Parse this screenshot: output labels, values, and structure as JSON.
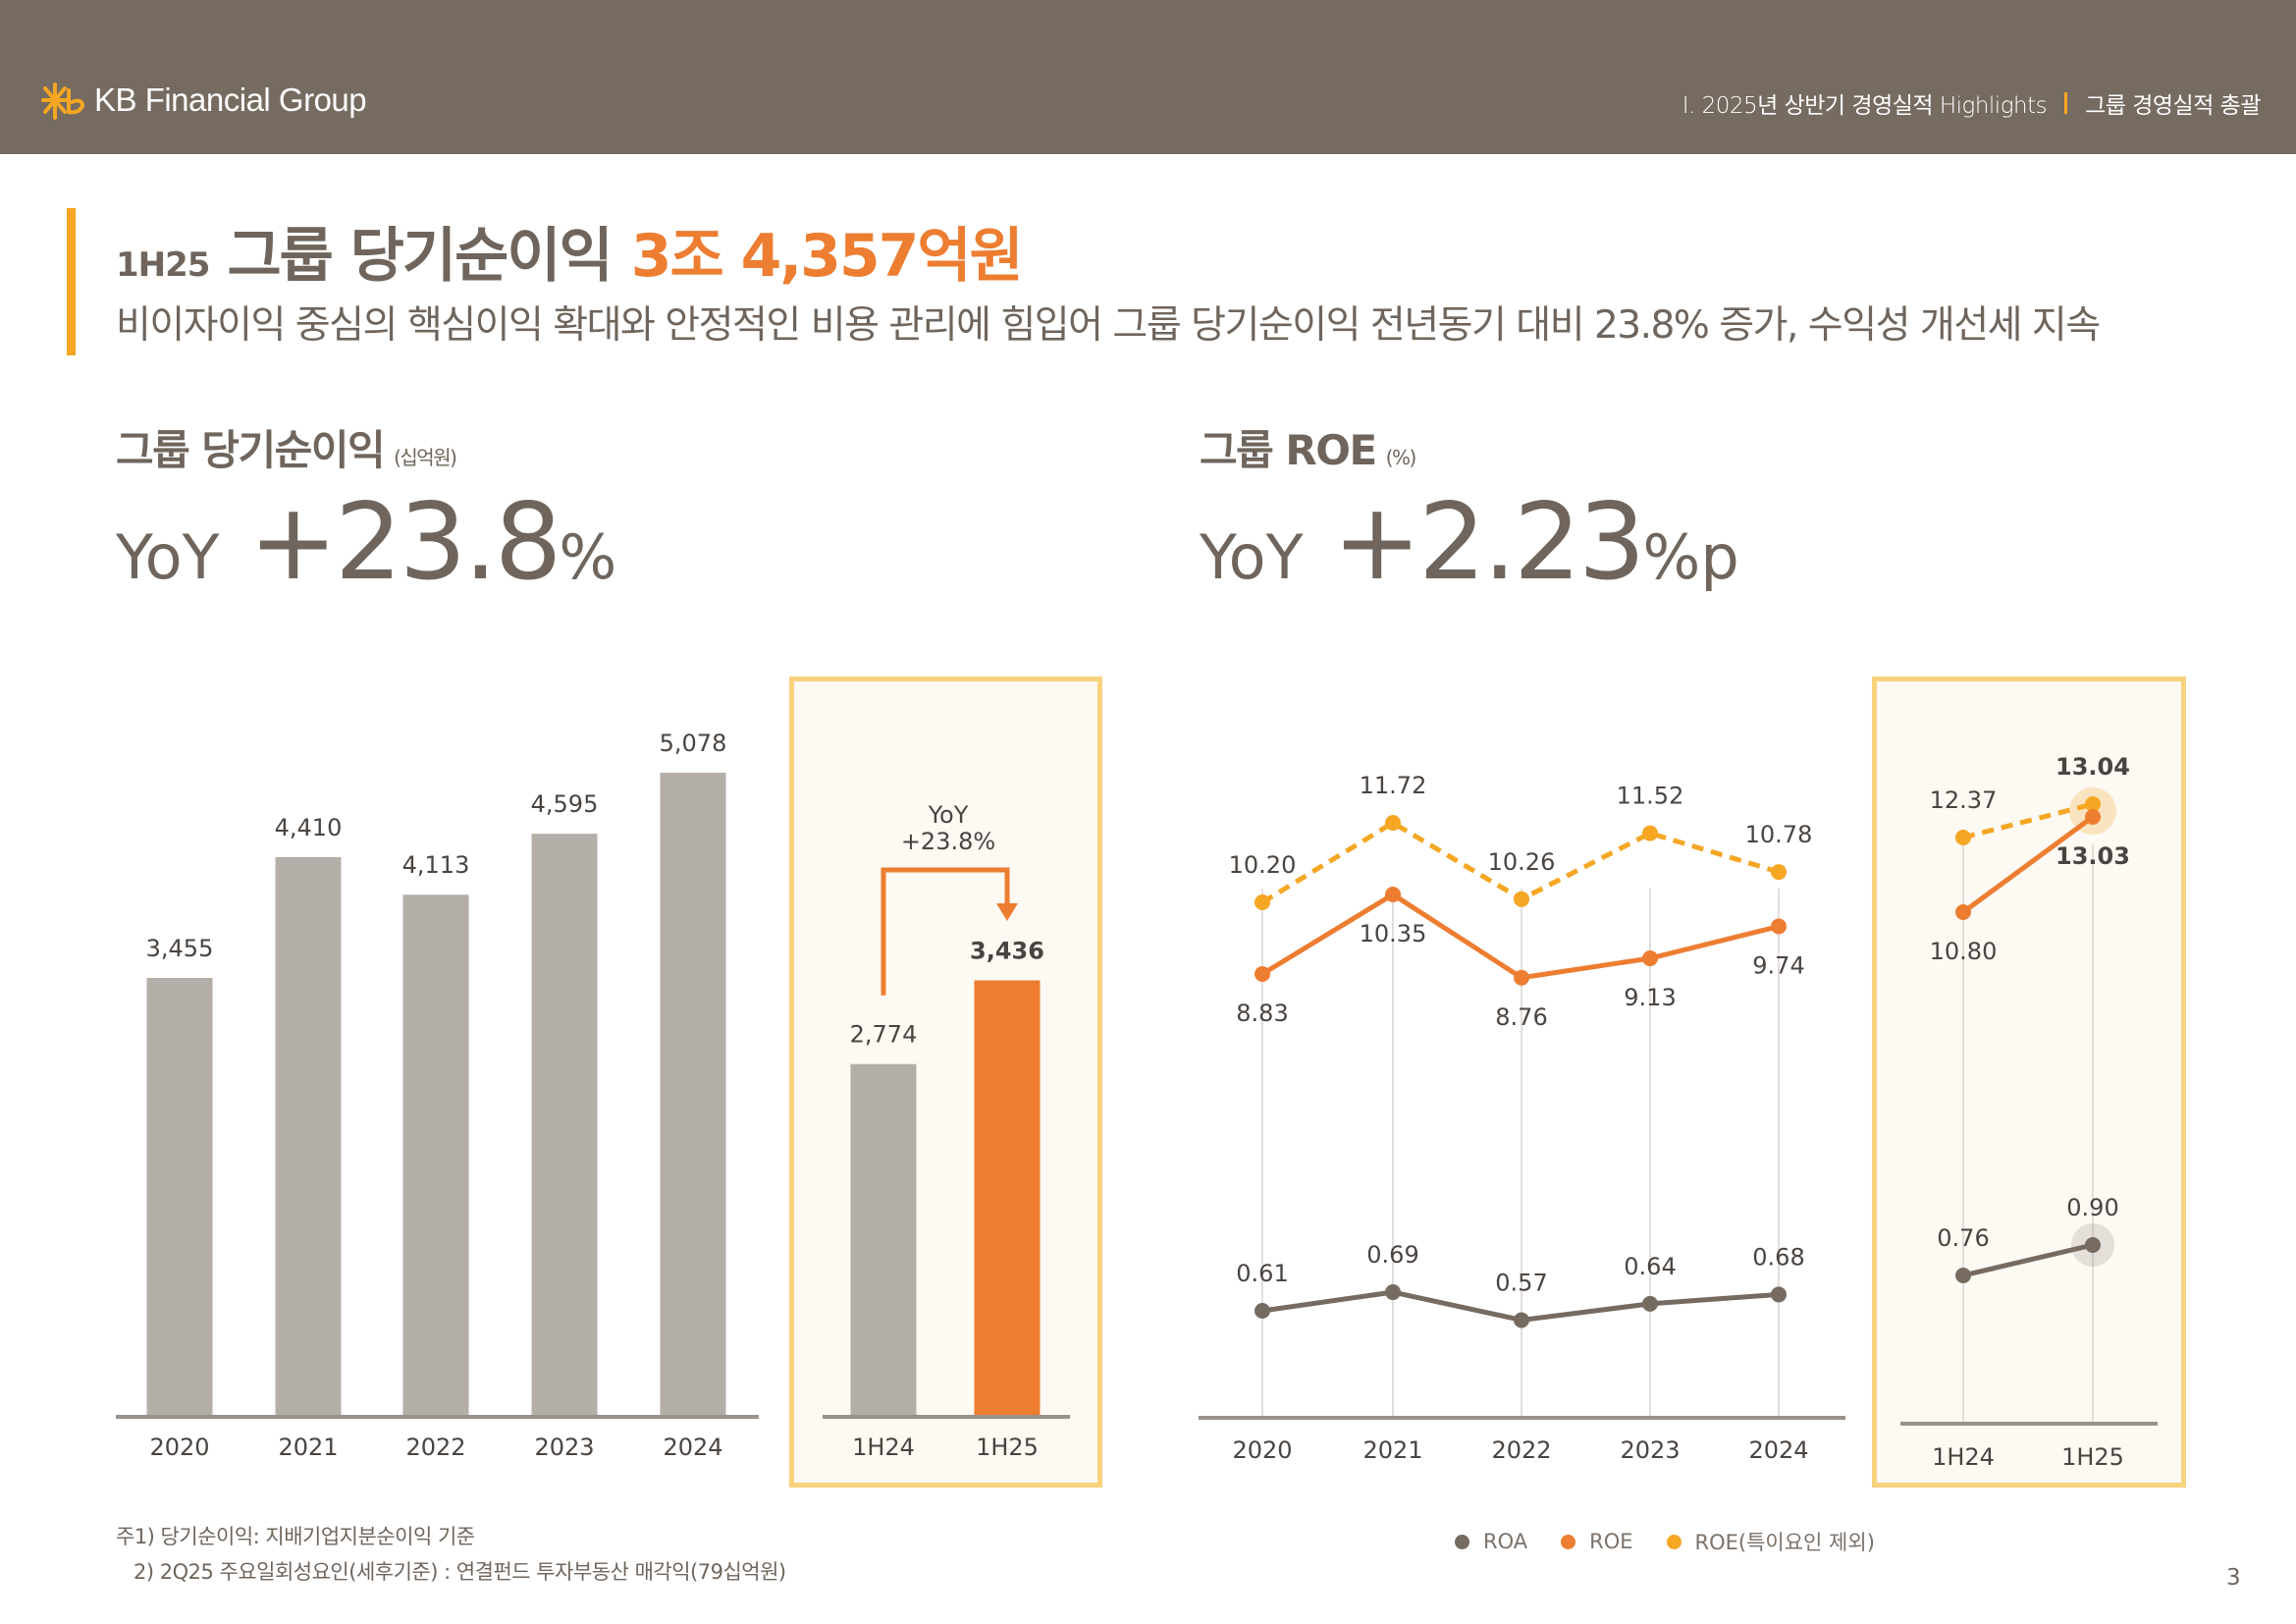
{
  "header": {
    "brand": "KB Financial Group",
    "breadcrumb_section": "Ⅰ. 2025년 상반기 경영실적 Highlights",
    "breadcrumb_page": "그룹 경영실적 총괄"
  },
  "title": {
    "prefix": "1H25",
    "main": "그룹 당기순이익",
    "accent": "3조 4,357억원",
    "subtitle": "비이자이익 중심의 핵심이익 확대와 안정적인 비용 관리에 힘입어 그룹 당기순이익 전년동기 대비 23.8% 증가, 수익성 개선세 지속"
  },
  "left_section": {
    "title": "그룹 당기순이익",
    "unit": "(십억원)",
    "yoy_label": "YoY",
    "yoy_value": "+23.8",
    "yoy_suffix": "%"
  },
  "right_section": {
    "title": "그룹 ROE",
    "unit": "(%)",
    "yoy_label": "YoY",
    "yoy_value": "+2.23",
    "yoy_suffix": "%p"
  },
  "colors": {
    "brown": "#766b60",
    "gray_bar": "#b3aea8",
    "orange": "#ed7d31",
    "yellow": "#f5a623",
    "highlight_border": "#f8d27c",
    "highlight_bg": "#fdf9f3"
  },
  "chart_data": [
    {
      "type": "bar",
      "title": "그룹 당기순이익",
      "ylabel": "십억원",
      "categories": [
        "2020",
        "2021",
        "2022",
        "2023",
        "2024"
      ],
      "values": [
        3455,
        4410,
        4113,
        4595,
        5078
      ],
      "labels": [
        "3,455",
        "4,410",
        "4,113",
        "4,595",
        "5,078"
      ]
    },
    {
      "type": "bar",
      "title": "그룹 당기순이익 (반기)",
      "categories": [
        "1H24",
        "1H25"
      ],
      "values": [
        2774,
        3436
      ],
      "labels": [
        "2,774",
        "3,436"
      ],
      "annotation": {
        "line1": "YoY",
        "line2": "+23.8%"
      }
    },
    {
      "type": "line",
      "title": "그룹 ROE",
      "ylabel": "%",
      "categories": [
        "2020",
        "2021",
        "2022",
        "2023",
        "2024"
      ],
      "series": [
        {
          "name": "ROA",
          "values": [
            0.61,
            0.69,
            0.57,
            0.64,
            0.68
          ],
          "labels": [
            "0.61",
            "0.69",
            "0.57",
            "0.64",
            "0.68"
          ]
        },
        {
          "name": "ROE",
          "values": [
            8.83,
            10.35,
            8.76,
            9.13,
            9.74
          ],
          "labels": [
            "8.83",
            "10.35",
            "8.76",
            "9.13",
            "9.74"
          ]
        },
        {
          "name": "ROE(특이요인 제외)",
          "values": [
            10.2,
            11.72,
            10.26,
            11.52,
            10.78
          ],
          "labels": [
            "10.20",
            "11.72",
            "10.26",
            "11.52",
            "10.78"
          ]
        }
      ]
    },
    {
      "type": "line",
      "title": "그룹 ROE (반기)",
      "categories": [
        "1H24",
        "1H25"
      ],
      "series": [
        {
          "name": "ROA",
          "values": [
            0.76,
            0.9
          ],
          "labels": [
            "0.76",
            "0.90"
          ]
        },
        {
          "name": "ROE",
          "values": [
            10.8,
            13.03
          ],
          "labels": [
            "10.80",
            "13.03"
          ]
        },
        {
          "name": "ROE(특이요인 제외)",
          "values": [
            12.37,
            13.04
          ],
          "labels": [
            "12.37",
            "13.04"
          ]
        }
      ]
    }
  ],
  "legend": [
    {
      "label": "ROA",
      "color": "#766b60"
    },
    {
      "label": "ROE",
      "color": "#ed7d31"
    },
    {
      "label": "ROE(특이요인 제외)",
      "color": "#f5a623"
    }
  ],
  "notes": {
    "note1": "주1) 당기순이익: 지배기업지분순이익 기준",
    "note2": "2) 2Q25 주요일회성요인(세후기준) : 연결펀드 투자부동산 매각익(79십억원)"
  },
  "page_number": "3"
}
